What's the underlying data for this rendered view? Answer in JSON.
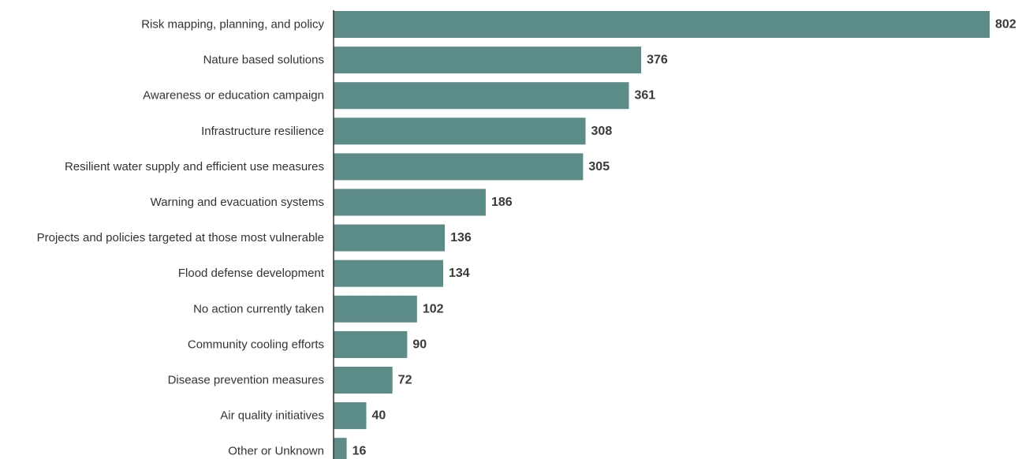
{
  "chart_data": {
    "type": "bar",
    "orientation": "horizontal",
    "categories": [
      "Risk mapping, planning, and policy",
      "Nature based solutions",
      "Awareness or education campaign",
      "Infrastructure resilience",
      "Resilient water supply and efficient use measures",
      "Warning and evacuation systems",
      "Projects and policies targeted at those most vulnerable",
      "Flood defense development",
      "No action currently taken",
      "Community cooling efforts",
      "Disease prevention measures",
      "Air quality initiatives",
      "Other or Unknown"
    ],
    "values": [
      802,
      376,
      361,
      308,
      305,
      186,
      136,
      134,
      102,
      90,
      72,
      40,
      16
    ],
    "title": "",
    "xlabel": "",
    "ylabel": "",
    "xlim": [
      0,
      802
    ],
    "grid": false,
    "legend": "none",
    "colors": {
      "bar": "#5b8c87",
      "axis": "#333333",
      "label": "#333333",
      "value": "#3a3a3a"
    }
  }
}
